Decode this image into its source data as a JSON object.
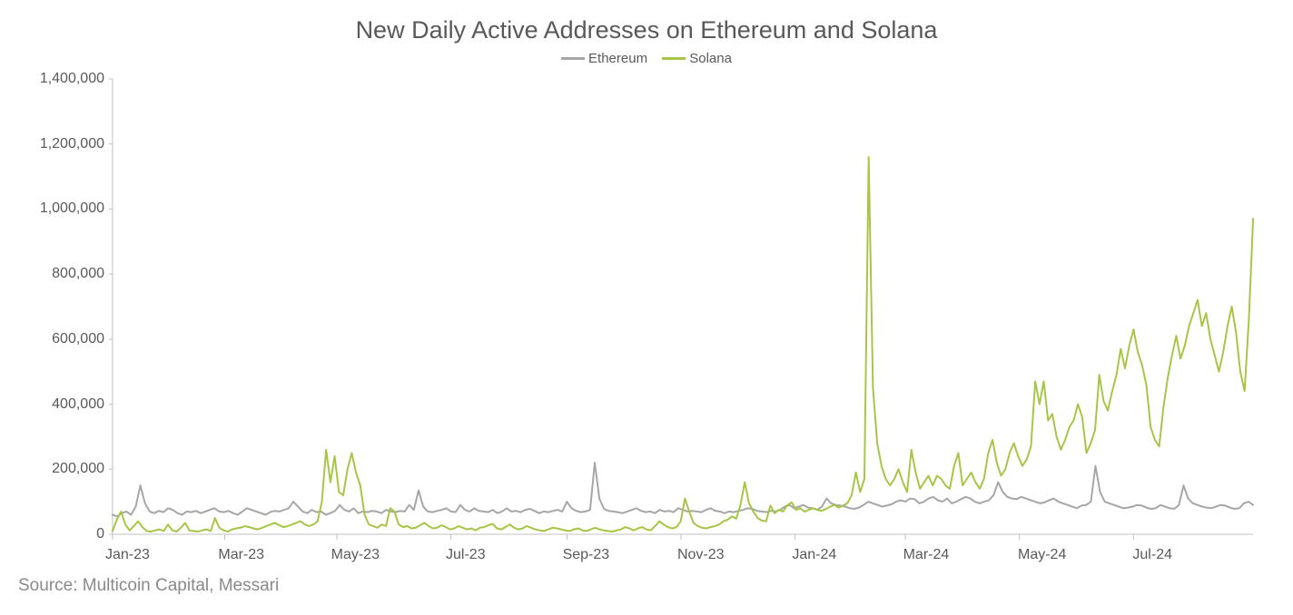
{
  "chart": {
    "type": "line",
    "title": "New Daily Active Addresses on Ethereum and Solana",
    "title_fontsize": 27,
    "title_color": "#595959",
    "background_color": "#ffffff",
    "source": "Source: Multicoin Capital, Messari",
    "source_color": "#8a8a8a",
    "source_fontsize": 19,
    "legend": {
      "position": "top-center",
      "fontsize": 15,
      "items": [
        {
          "label": "Ethereum",
          "color": "#a6a6a6"
        },
        {
          "label": "Solana",
          "color": "#a6c544"
        }
      ]
    },
    "y_axis": {
      "min": 0,
      "max": 1400000,
      "tick_step": 200000,
      "ticks": [
        0,
        200000,
        400000,
        600000,
        800000,
        1000000,
        1200000,
        1400000
      ],
      "tick_labels": [
        "0",
        "200,000",
        "400,000",
        "600,000",
        "800,000",
        "1,000,000",
        "1,200,000",
        "1,400,000"
      ],
      "label_fontsize": 16,
      "label_color": "#595959"
    },
    "x_axis": {
      "type": "date",
      "range": [
        "2023-01-01",
        "2024-08-31"
      ],
      "tick_labels": [
        "Jan-23",
        "Mar-23",
        "May-23",
        "Jul-23",
        "Sep-23",
        "Nov-23",
        "Jan-24",
        "Mar-24",
        "May-24",
        "Jul-24"
      ],
      "tick_positions_pct": [
        0.0,
        9.84,
        19.67,
        29.67,
        39.84,
        49.84,
        59.84,
        69.51,
        79.51,
        89.51
      ],
      "label_fontsize": 16,
      "label_color": "#595959"
    },
    "axis_line_color": "#c0c0c0",
    "grid": false,
    "line_width": 2,
    "series": {
      "ethereum": {
        "color": "#a6a6a6",
        "data": [
          60000,
          55000,
          65000,
          70000,
          60000,
          85000,
          150000,
          95000,
          70000,
          65000,
          72000,
          68000,
          80000,
          75000,
          65000,
          60000,
          70000,
          68000,
          72000,
          65000,
          70000,
          75000,
          80000,
          70000,
          68000,
          72000,
          65000,
          60000,
          70000,
          80000,
          75000,
          70000,
          65000,
          60000,
          68000,
          72000,
          70000,
          75000,
          80000,
          100000,
          85000,
          70000,
          65000,
          75000,
          68000,
          70000,
          60000,
          65000,
          72000,
          90000,
          75000,
          70000,
          80000,
          65000,
          70000,
          68000,
          72000,
          70000,
          65000,
          75000,
          70000,
          68000,
          72000,
          70000,
          90000,
          75000,
          135000,
          85000,
          70000,
          68000,
          72000,
          75000,
          80000,
          70000,
          68000,
          90000,
          75000,
          70000,
          80000,
          72000,
          70000,
          68000,
          75000,
          65000,
          70000,
          80000,
          70000,
          72000,
          68000,
          75000,
          78000,
          72000,
          65000,
          70000,
          68000,
          72000,
          75000,
          70000,
          100000,
          80000,
          72000,
          68000,
          70000,
          75000,
          220000,
          110000,
          78000,
          72000,
          70000,
          68000,
          65000,
          70000,
          75000,
          80000,
          72000,
          68000,
          70000,
          65000,
          75000,
          70000,
          72000,
          68000,
          80000,
          75000,
          70000,
          72000,
          70000,
          68000,
          75000,
          80000,
          72000,
          70000,
          65000,
          70000,
          68000,
          72000,
          75000,
          80000,
          78000,
          72000,
          70000,
          68000,
          72000,
          70000,
          75000,
          85000,
          90000,
          80000,
          85000,
          90000,
          82000,
          80000,
          75000,
          85000,
          110000,
          95000,
          90000,
          88000,
          85000,
          80000,
          78000,
          82000,
          90000,
          100000,
          95000,
          90000,
          85000,
          88000,
          92000,
          100000,
          105000,
          100000,
          110000,
          108000,
          95000,
          100000,
          110000,
          115000,
          105000,
          100000,
          110000,
          95000,
          100000,
          108000,
          115000,
          110000,
          100000,
          95000,
          100000,
          105000,
          120000,
          160000,
          130000,
          115000,
          110000,
          108000,
          115000,
          110000,
          105000,
          100000,
          95000,
          98000,
          105000,
          110000,
          100000,
          95000,
          90000,
          85000,
          80000,
          88000,
          90000,
          100000,
          210000,
          130000,
          100000,
          95000,
          90000,
          85000,
          80000,
          82000,
          85000,
          90000,
          88000,
          82000,
          78000,
          80000,
          90000,
          85000,
          80000,
          78000,
          90000,
          150000,
          110000,
          95000,
          90000,
          85000,
          82000,
          80000,
          85000,
          90000,
          88000,
          82000,
          78000,
          80000,
          95000,
          100000,
          90000
        ]
      },
      "solana": {
        "color": "#a6c544",
        "data": [
          10000,
          45000,
          70000,
          30000,
          12000,
          25000,
          40000,
          22000,
          10000,
          8000,
          12000,
          15000,
          10000,
          30000,
          12000,
          8000,
          20000,
          35000,
          12000,
          10000,
          8000,
          12000,
          15000,
          10000,
          50000,
          20000,
          12000,
          8000,
          15000,
          18000,
          20000,
          25000,
          22000,
          18000,
          15000,
          20000,
          25000,
          30000,
          35000,
          28000,
          22000,
          25000,
          30000,
          35000,
          40000,
          30000,
          25000,
          30000,
          40000,
          100000,
          260000,
          160000,
          240000,
          130000,
          120000,
          200000,
          250000,
          190000,
          150000,
          60000,
          30000,
          25000,
          20000,
          30000,
          25000,
          80000,
          70000,
          30000,
          22000,
          25000,
          18000,
          20000,
          28000,
          35000,
          25000,
          18000,
          20000,
          28000,
          22000,
          15000,
          18000,
          25000,
          20000,
          15000,
          18000,
          12000,
          20000,
          22000,
          28000,
          32000,
          18000,
          15000,
          22000,
          30000,
          20000,
          15000,
          18000,
          25000,
          20000,
          15000,
          12000,
          10000,
          15000,
          20000,
          18000,
          15000,
          12000,
          10000,
          15000,
          18000,
          12000,
          10000,
          15000,
          20000,
          15000,
          12000,
          10000,
          8000,
          12000,
          15000,
          22000,
          18000,
          12000,
          18000,
          22000,
          15000,
          12000,
          25000,
          40000,
          30000,
          22000,
          18000,
          22000,
          40000,
          110000,
          70000,
          35000,
          25000,
          20000,
          18000,
          22000,
          25000,
          30000,
          40000,
          45000,
          55000,
          48000,
          90000,
          160000,
          95000,
          70000,
          50000,
          42000,
          40000,
          88000,
          65000,
          75000,
          70000,
          90000,
          98000,
          75000,
          80000,
          70000,
          75000,
          80000,
          75000,
          72000,
          78000,
          85000,
          90000,
          82000,
          88000,
          95000,
          120000,
          190000,
          130000,
          170000,
          1160000,
          450000,
          280000,
          210000,
          170000,
          150000,
          170000,
          200000,
          160000,
          130000,
          260000,
          190000,
          140000,
          160000,
          180000,
          150000,
          180000,
          170000,
          150000,
          140000,
          210000,
          250000,
          150000,
          170000,
          190000,
          160000,
          140000,
          170000,
          250000,
          290000,
          220000,
          180000,
          200000,
          250000,
          280000,
          240000,
          210000,
          230000,
          270000,
          470000,
          400000,
          470000,
          350000,
          370000,
          300000,
          260000,
          290000,
          330000,
          350000,
          400000,
          360000,
          250000,
          280000,
          320000,
          490000,
          410000,
          380000,
          440000,
          490000,
          570000,
          510000,
          580000,
          630000,
          560000,
          520000,
          460000,
          330000,
          290000,
          270000,
          390000,
          480000,
          550000,
          610000,
          540000,
          580000,
          640000,
          680000,
          720000,
          640000,
          680000,
          600000,
          550000,
          500000,
          560000,
          640000,
          700000,
          620000,
          500000,
          440000,
          660000,
          970000
        ]
      }
    }
  }
}
